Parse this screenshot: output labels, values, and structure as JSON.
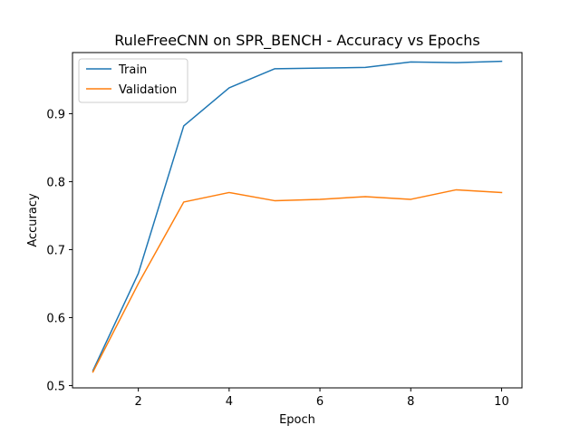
{
  "chart_data": {
    "type": "line",
    "title": "RuleFreeCNN on SPR_BENCH - Accuracy vs Epochs",
    "xlabel": "Epoch",
    "ylabel": "Accuracy",
    "x": [
      1,
      2,
      3,
      4,
      5,
      6,
      7,
      8,
      9,
      10
    ],
    "xlim": [
      0.55,
      10.45
    ],
    "ylim": [
      0.4966,
      0.9899
    ],
    "xticks": [
      2,
      4,
      6,
      8,
      10
    ],
    "yticks": [
      0.5,
      0.6,
      0.7,
      0.8,
      0.9
    ],
    "xtick_labels": [
      "2",
      "4",
      "6",
      "8",
      "10"
    ],
    "ytick_labels": [
      "0.5",
      "0.6",
      "0.7",
      "0.8",
      "0.9"
    ],
    "grid": false,
    "legend_position": "upper left",
    "series": [
      {
        "name": "Train",
        "color": "#1f77b4",
        "values": [
          0.522,
          0.665,
          0.882,
          0.938,
          0.966,
          0.967,
          0.968,
          0.976,
          0.975,
          0.977
        ]
      },
      {
        "name": "Validation",
        "color": "#ff7f0e",
        "values": [
          0.52,
          0.65,
          0.77,
          0.784,
          0.772,
          0.774,
          0.778,
          0.774,
          0.788,
          0.784
        ]
      }
    ]
  }
}
